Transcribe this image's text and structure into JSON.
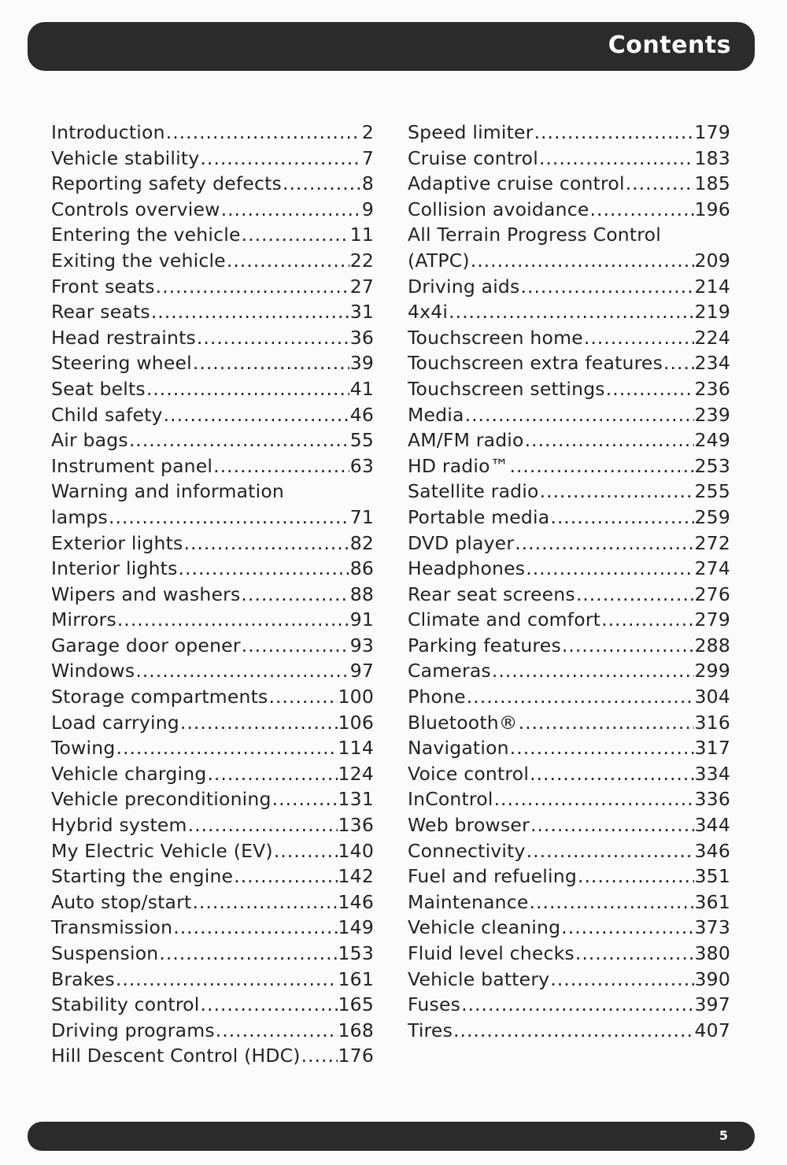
{
  "header": {
    "title": "Contents"
  },
  "footer": {
    "page_number": "5"
  },
  "left_column": [
    {
      "title": "Introduction",
      "page": "2"
    },
    {
      "title": "Vehicle stability",
      "page": "7"
    },
    {
      "title": "Reporting safety defects",
      "page": "8"
    },
    {
      "title": "Controls overview",
      "page": "9"
    },
    {
      "title": "Entering the vehicle",
      "page": "11"
    },
    {
      "title": "Exiting the vehicle",
      "page": "22"
    },
    {
      "title": "Front seats",
      "page": "27"
    },
    {
      "title": "Rear seats",
      "page": "31"
    },
    {
      "title": "Head restraints",
      "page": "36"
    },
    {
      "title": "Steering wheel",
      "page": "39"
    },
    {
      "title": "Seat belts",
      "page": "41"
    },
    {
      "title": "Child safety",
      "page": "46"
    },
    {
      "title": "Air bags",
      "page": "55"
    },
    {
      "title": "Instrument panel",
      "page": "63"
    },
    {
      "title": "Warning and information",
      "title_cont": "lamps",
      "page": "71"
    },
    {
      "title": "Exterior lights",
      "page": "82"
    },
    {
      "title": "Interior lights",
      "page": "86"
    },
    {
      "title": "Wipers and washers",
      "page": "88"
    },
    {
      "title": "Mirrors",
      "page": "91"
    },
    {
      "title": "Garage door opener",
      "page": "93"
    },
    {
      "title": "Windows",
      "page": "97"
    },
    {
      "title": "Storage compartments",
      "page": "100"
    },
    {
      "title": "Load carrying",
      "page": "106"
    },
    {
      "title": "Towing",
      "page": "114"
    },
    {
      "title": "Vehicle charging",
      "page": "124"
    },
    {
      "title": "Vehicle preconditioning",
      "page": "131"
    },
    {
      "title": "Hybrid system",
      "page": "136"
    },
    {
      "title": "My Electric Vehicle (EV)",
      "page": "140"
    },
    {
      "title": "Starting the engine",
      "page": "142"
    },
    {
      "title": "Auto stop/start",
      "page": "146"
    },
    {
      "title": "Transmission",
      "page": "149"
    },
    {
      "title": "Suspension",
      "page": "153"
    },
    {
      "title": "Brakes",
      "page": "161"
    },
    {
      "title": "Stability control",
      "page": "165"
    },
    {
      "title": "Driving programs",
      "page": "168"
    },
    {
      "title": "Hill Descent Control (HDC)",
      "page": "176"
    }
  ],
  "right_column": [
    {
      "title": "Speed limiter",
      "page": "179"
    },
    {
      "title": "Cruise control",
      "page": "183"
    },
    {
      "title": "Adaptive cruise control",
      "page": "185"
    },
    {
      "title": "Collision avoidance",
      "page": "196"
    },
    {
      "title": "All Terrain Progress Control",
      "title_cont": "(ATPC)",
      "page": "209"
    },
    {
      "title": "Driving aids",
      "page": "214"
    },
    {
      "title": "4x4i",
      "page": "219"
    },
    {
      "title": "Touchscreen home",
      "page": "224"
    },
    {
      "title": "Touchscreen extra features",
      "page": "234"
    },
    {
      "title": "Touchscreen settings",
      "page": "236"
    },
    {
      "title": "Media",
      "page": "239"
    },
    {
      "title": "AM/FM radio",
      "page": "249"
    },
    {
      "title": "HD radio™",
      "page": "253"
    },
    {
      "title": "Satellite radio",
      "page": "255"
    },
    {
      "title": "Portable media",
      "page": "259"
    },
    {
      "title": "DVD player",
      "page": "272"
    },
    {
      "title": "Headphones",
      "page": "274"
    },
    {
      "title": "Rear seat screens",
      "page": "276"
    },
    {
      "title": "Climate and comfort",
      "page": "279"
    },
    {
      "title": "Parking features",
      "page": "288"
    },
    {
      "title": "Cameras",
      "page": "299"
    },
    {
      "title": "Phone",
      "page": "304"
    },
    {
      "title": "Bluetooth®",
      "page": "316"
    },
    {
      "title": "Navigation",
      "page": "317"
    },
    {
      "title": "Voice control",
      "page": "334"
    },
    {
      "title": "InControl",
      "page": "336"
    },
    {
      "title": "Web browser",
      "page": "344"
    },
    {
      "title": "Connectivity",
      "page": "346"
    },
    {
      "title": "Fuel and refueling",
      "page": "351"
    },
    {
      "title": "Maintenance",
      "page": "361"
    },
    {
      "title": "Vehicle cleaning",
      "page": "373"
    },
    {
      "title": "Fluid level checks",
      "page": "380"
    },
    {
      "title": "Vehicle battery",
      "page": "390"
    },
    {
      "title": "Fuses",
      "page": "397"
    },
    {
      "title": "Tires",
      "page": "407"
    }
  ]
}
